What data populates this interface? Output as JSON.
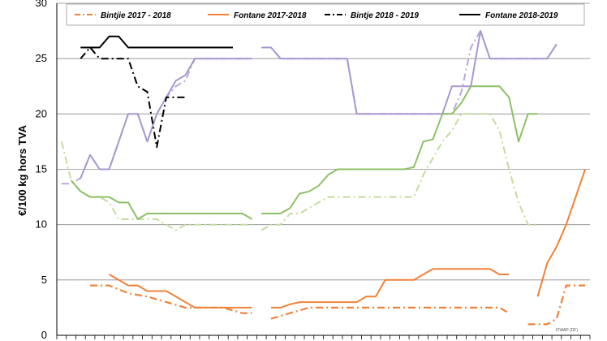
{
  "chart_data": {
    "type": "line",
    "title": "",
    "xlabel": "",
    "ylabel": "€/100 kg hors TVA",
    "ylim": [
      0,
      30
    ],
    "y_ticks": [
      0,
      5,
      10,
      15,
      20,
      25,
      30
    ],
    "x_count": 56,
    "grid": "horizontal",
    "legend_position": "top",
    "source": "FIWAP (DF)",
    "legend": [
      {
        "name": "Bintjie 2017 - 2018",
        "color": "#f0823a",
        "dash": "dashdot"
      },
      {
        "name": "Fontane 2017-2018",
        "color": "#f0823a",
        "dash": "solid"
      },
      {
        "name": "Bintje 2018 - 2019",
        "color": "#000000",
        "dash": "dashdot"
      },
      {
        "name": "Fontane 2018-2019",
        "color": "#000000",
        "dash": "solid"
      }
    ],
    "series": [
      {
        "color": "#f0823a",
        "dash": "dashdot",
        "width": 2.2,
        "points": [
          [
            3,
            4.5
          ],
          [
            5,
            4.5
          ],
          [
            7,
            3.8
          ],
          [
            9,
            3.5
          ],
          [
            11,
            3
          ],
          [
            13,
            2.5
          ],
          [
            15,
            2.5
          ],
          [
            17,
            2.5
          ],
          [
            19,
            2
          ],
          [
            20,
            2
          ],
          [
            null,
            null
          ],
          [
            22,
            1.5
          ],
          [
            24,
            2
          ],
          [
            26,
            2.5
          ],
          [
            28,
            2.5
          ],
          [
            30,
            2.5
          ],
          [
            32,
            2.5
          ],
          [
            34,
            2.5
          ],
          [
            36,
            2.5
          ],
          [
            38,
            2.5
          ],
          [
            40,
            2.5
          ],
          [
            42,
            2.5
          ],
          [
            44,
            2.5
          ],
          [
            46,
            2.5
          ],
          [
            47,
            2
          ],
          [
            null,
            null
          ],
          [
            49,
            1
          ],
          [
            51,
            1
          ],
          [
            52,
            1.5
          ],
          [
            53,
            4.5
          ],
          [
            55,
            4.5
          ]
        ]
      },
      {
        "color": "#f0823a",
        "dash": "solid",
        "width": 2,
        "points": [
          [
            5,
            5.5
          ],
          [
            6,
            5
          ],
          [
            7,
            4.5
          ],
          [
            8,
            4.5
          ],
          [
            9,
            4
          ],
          [
            10,
            4
          ],
          [
            11,
            4
          ],
          [
            12,
            3.5
          ],
          [
            13,
            3
          ],
          [
            14,
            2.5
          ],
          [
            15,
            2.5
          ],
          [
            17,
            2.5
          ],
          [
            18,
            2.5
          ],
          [
            20,
            2.5
          ],
          [
            null,
            null
          ],
          [
            22,
            2.5
          ],
          [
            23,
            2.5
          ],
          [
            24,
            2.8
          ],
          [
            25,
            3
          ],
          [
            27,
            3
          ],
          [
            29,
            3
          ],
          [
            31,
            3
          ],
          [
            32,
            3.5
          ],
          [
            33,
            3.5
          ],
          [
            34,
            5
          ],
          [
            36,
            5
          ],
          [
            37,
            5
          ],
          [
            38,
            5.5
          ],
          [
            39,
            6
          ],
          [
            41,
            6
          ],
          [
            43,
            6
          ],
          [
            44,
            6
          ],
          [
            45,
            6
          ],
          [
            46,
            5.5
          ],
          [
            47,
            5.5
          ],
          [
            null,
            null
          ],
          [
            50,
            3.5
          ],
          [
            51,
            6.5
          ],
          [
            52,
            8
          ],
          [
            53,
            10
          ],
          [
            55,
            15
          ]
        ]
      },
      {
        "color": "#b8a8d8",
        "dash": "dashdot",
        "width": 2,
        "points": [
          [
            0,
            13.7
          ],
          [
            1,
            13.7
          ],
          [
            2,
            14.2
          ],
          [
            3,
            16.3
          ],
          [
            4,
            15
          ],
          [
            5,
            15
          ],
          [
            6,
            17.5
          ],
          [
            7,
            20
          ],
          [
            8,
            20
          ],
          [
            9,
            17.5
          ],
          [
            10,
            20
          ],
          [
            11,
            21.5
          ],
          [
            12,
            22.5
          ],
          [
            13,
            23
          ],
          [
            14,
            25
          ],
          [
            15,
            25
          ],
          [
            16,
            25
          ],
          [
            17,
            25
          ],
          [
            18,
            25
          ],
          [
            19,
            25
          ],
          [
            20,
            25
          ],
          [
            null,
            null
          ],
          [
            21,
            26
          ],
          [
            22,
            26
          ],
          [
            23,
            25
          ],
          [
            25,
            25
          ],
          [
            27,
            25
          ],
          [
            29,
            25
          ],
          [
            30,
            25
          ],
          [
            31,
            20
          ],
          [
            33,
            20
          ],
          [
            35,
            20
          ],
          [
            37,
            20
          ],
          [
            39,
            20
          ],
          [
            40,
            20
          ],
          [
            41,
            20
          ],
          [
            42,
            22
          ],
          [
            43,
            26
          ],
          [
            44,
            27.5
          ],
          [
            45,
            25
          ],
          [
            46,
            25
          ],
          [
            48,
            25
          ],
          [
            50,
            25
          ],
          [
            51,
            25
          ],
          [
            52,
            26.3
          ]
        ]
      },
      {
        "color": "#a898d0",
        "dash": "solid",
        "width": 2,
        "points": [
          [
            2,
            14.2
          ],
          [
            3,
            16.3
          ],
          [
            4,
            15
          ],
          [
            5,
            15
          ],
          [
            6,
            17.5
          ],
          [
            7,
            20
          ],
          [
            8,
            20
          ],
          [
            9,
            17.5
          ],
          [
            10,
            20
          ],
          [
            11,
            21.5
          ],
          [
            12,
            23
          ],
          [
            13,
            23.5
          ],
          [
            14,
            25
          ],
          [
            15,
            25
          ],
          [
            16,
            25
          ],
          [
            17,
            25
          ],
          [
            18,
            25
          ],
          [
            19,
            25
          ],
          [
            20,
            25
          ],
          [
            null,
            null
          ],
          [
            21,
            26
          ],
          [
            22,
            26
          ],
          [
            23,
            25
          ],
          [
            25,
            25
          ],
          [
            27,
            25
          ],
          [
            29,
            25
          ],
          [
            30,
            25
          ],
          [
            31,
            20
          ],
          [
            33,
            20
          ],
          [
            35,
            20
          ],
          [
            37,
            20
          ],
          [
            39,
            20
          ],
          [
            40,
            20
          ],
          [
            41,
            22.5
          ],
          [
            42,
            22.5
          ],
          [
            43,
            22.5
          ],
          [
            44,
            27.5
          ],
          [
            45,
            25
          ],
          [
            46,
            25
          ],
          [
            48,
            25
          ],
          [
            50,
            25
          ],
          [
            51,
            25
          ],
          [
            52,
            26.3
          ]
        ]
      },
      {
        "color": "#c5dca0",
        "dash": "dashdot",
        "width": 2,
        "points": [
          [
            0,
            17.5
          ],
          [
            1,
            14
          ],
          [
            2,
            13
          ],
          [
            3,
            12.5
          ],
          [
            4,
            12.5
          ],
          [
            5,
            12
          ],
          [
            6,
            10.5
          ],
          [
            7,
            10.5
          ],
          [
            8,
            10.5
          ],
          [
            9,
            10.5
          ],
          [
            10,
            10.5
          ],
          [
            11,
            10
          ],
          [
            12,
            9.5
          ],
          [
            13,
            10
          ],
          [
            14,
            10
          ],
          [
            15,
            10
          ],
          [
            16,
            10
          ],
          [
            17,
            10
          ],
          [
            18,
            10
          ],
          [
            19,
            10
          ],
          [
            20,
            10
          ],
          [
            null,
            null
          ],
          [
            21,
            9.5
          ],
          [
            22,
            10
          ],
          [
            23,
            10
          ],
          [
            24,
            11
          ],
          [
            25,
            11
          ],
          [
            26,
            11.5
          ],
          [
            27,
            12
          ],
          [
            28,
            12.5
          ],
          [
            29,
            12.5
          ],
          [
            31,
            12.5
          ],
          [
            33,
            12.5
          ],
          [
            35,
            12.5
          ],
          [
            36,
            12.5
          ],
          [
            37,
            12.5
          ],
          [
            38,
            14.5
          ],
          [
            39,
            16
          ],
          [
            40,
            17.5
          ],
          [
            41,
            18.5
          ],
          [
            42,
            20
          ],
          [
            43,
            20
          ],
          [
            44,
            20
          ],
          [
            45,
            20
          ],
          [
            46,
            18.5
          ],
          [
            47,
            15
          ],
          [
            48,
            12
          ],
          [
            49,
            10
          ],
          [
            50,
            10
          ]
        ]
      },
      {
        "color": "#8dc066",
        "dash": "solid",
        "width": 2,
        "points": [
          [
            1,
            14
          ],
          [
            2,
            13
          ],
          [
            3,
            12.5
          ],
          [
            4,
            12.5
          ],
          [
            5,
            12.5
          ],
          [
            6,
            12
          ],
          [
            7,
            12
          ],
          [
            8,
            10.5
          ],
          [
            9,
            11
          ],
          [
            10,
            11
          ],
          [
            11,
            11
          ],
          [
            12,
            11
          ],
          [
            13,
            11
          ],
          [
            14,
            11
          ],
          [
            15,
            11
          ],
          [
            16,
            11
          ],
          [
            17,
            11
          ],
          [
            18,
            11
          ],
          [
            19,
            11
          ],
          [
            20,
            10.5
          ],
          [
            null,
            null
          ],
          [
            21,
            11
          ],
          [
            22,
            11
          ],
          [
            23,
            11
          ],
          [
            24,
            11.5
          ],
          [
            25,
            12.8
          ],
          [
            26,
            13
          ],
          [
            27,
            13.5
          ],
          [
            28,
            14.5
          ],
          [
            29,
            15
          ],
          [
            31,
            15
          ],
          [
            33,
            15
          ],
          [
            35,
            15
          ],
          [
            36,
            15
          ],
          [
            37,
            15.2
          ],
          [
            38,
            17.5
          ],
          [
            39,
            17.7
          ],
          [
            40,
            20
          ],
          [
            41,
            20
          ],
          [
            42,
            21
          ],
          [
            43,
            22.5
          ],
          [
            44,
            22.5
          ],
          [
            45,
            22.5
          ],
          [
            46,
            22.5
          ],
          [
            47,
            21.5
          ],
          [
            48,
            17.5
          ],
          [
            49,
            20
          ],
          [
            50,
            20
          ]
        ]
      },
      {
        "color": "#000000",
        "dash": "dashdot",
        "width": 2,
        "points": [
          [
            2,
            25
          ],
          [
            3,
            26
          ],
          [
            4,
            25
          ],
          [
            5,
            25
          ],
          [
            6,
            25
          ],
          [
            7,
            25
          ],
          [
            8,
            22.5
          ],
          [
            9,
            22
          ],
          [
            10,
            17
          ],
          [
            11,
            21.5
          ],
          [
            12,
            21.5
          ],
          [
            13,
            21.5
          ]
        ]
      },
      {
        "color": "#000000",
        "dash": "solid",
        "width": 2,
        "points": [
          [
            2,
            26
          ],
          [
            3,
            26
          ],
          [
            4,
            26
          ],
          [
            5,
            27
          ],
          [
            6,
            27
          ],
          [
            7,
            26
          ],
          [
            8,
            26
          ],
          [
            9,
            26
          ],
          [
            10,
            26
          ],
          [
            11,
            26
          ],
          [
            12,
            26
          ],
          [
            13,
            26
          ],
          [
            14,
            26
          ],
          [
            15,
            26
          ],
          [
            16,
            26
          ],
          [
            17,
            26
          ],
          [
            18,
            26
          ]
        ]
      }
    ]
  }
}
